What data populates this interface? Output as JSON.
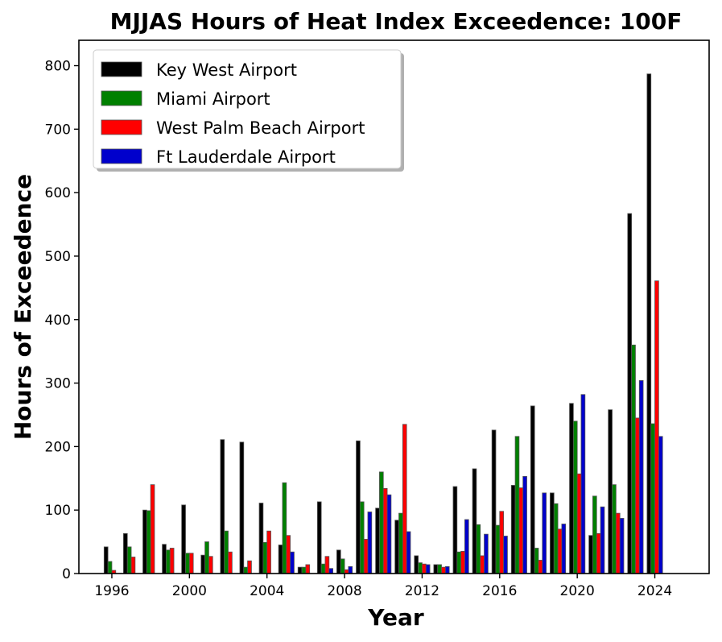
{
  "chart_data": {
    "type": "bar",
    "title": "MJJAS Hours of Heat Index Exceedence: 100F",
    "xlabel": "Year",
    "ylabel": "Hours of Exceedence",
    "xlim": [
      1994.3,
      2026.8
    ],
    "ylim": [
      0,
      840
    ],
    "xticks": [
      1996,
      2000,
      2004,
      2008,
      2012,
      2016,
      2020,
      2024
    ],
    "yticks": [
      0,
      100,
      200,
      300,
      400,
      500,
      600,
      700,
      800
    ],
    "legend_position": "top-left",
    "grid": false,
    "x": [
      1996,
      1997,
      1998,
      1999,
      2000,
      2001,
      2002,
      2003,
      2004,
      2005,
      2006,
      2007,
      2008,
      2009,
      2010,
      2011,
      2012,
      2013,
      2014,
      2015,
      2016,
      2017,
      2018,
      2019,
      2020,
      2021,
      2022,
      2023,
      2024
    ],
    "series": [
      {
        "name": "Key West Airport",
        "color": "#000000",
        "values": [
          42,
          63,
          100,
          46,
          108,
          29,
          211,
          207,
          111,
          45,
          10,
          113,
          37,
          209,
          103,
          84,
          28,
          14,
          137,
          165,
          226,
          139,
          264,
          127,
          268,
          60,
          258,
          567,
          787
        ]
      },
      {
        "name": "Miami Airport",
        "color": "#008000",
        "values": [
          19,
          42,
          99,
          37,
          32,
          50,
          67,
          10,
          49,
          143,
          10,
          15,
          23,
          113,
          160,
          95,
          17,
          14,
          34,
          77,
          76,
          216,
          40,
          110,
          240,
          122,
          140,
          360,
          236
        ]
      },
      {
        "name": "West Palm Beach Airport",
        "color": "#ff0000",
        "values": [
          5,
          26,
          140,
          40,
          32,
          27,
          34,
          20,
          67,
          60,
          14,
          27,
          6,
          54,
          134,
          235,
          15,
          10,
          35,
          28,
          98,
          135,
          21,
          70,
          157,
          63,
          95,
          245,
          461
        ]
      },
      {
        "name": "Ft Lauderdale Airport",
        "color": "#0000cc",
        "values": [
          0,
          0,
          0,
          0,
          0,
          0,
          0,
          0,
          0,
          34,
          0,
          8,
          11,
          97,
          124,
          66,
          14,
          11,
          85,
          62,
          59,
          153,
          127,
          78,
          282,
          105,
          87,
          304,
          216
        ]
      }
    ]
  }
}
